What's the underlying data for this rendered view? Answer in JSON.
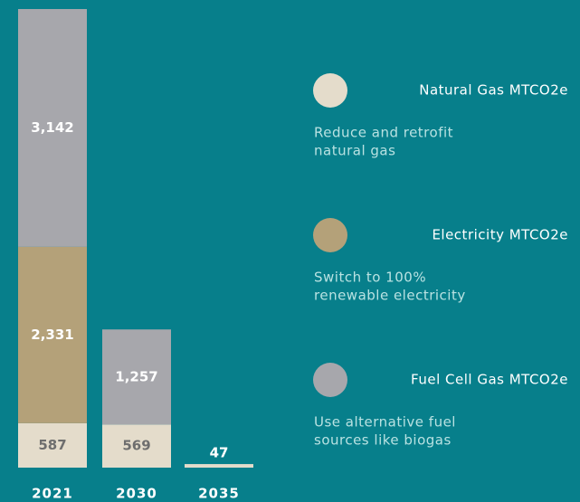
{
  "chart_data": {
    "type": "stacked_bar",
    "categories": [
      "2021",
      "2030",
      "2035"
    ],
    "series": [
      {
        "name": "Natural Gas MTCO2e",
        "color": "#e4dccb",
        "label_color": "#6e6e6e",
        "values": [
          587,
          569,
          47
        ],
        "value_labels": [
          "587",
          "569",
          "47"
        ],
        "description": [
          "Reduce and retrofit",
          "natural gas"
        ]
      },
      {
        "name": "Electricity MTCO2e",
        "color": "#b4a179",
        "label_color": "#ffffff",
        "values": [
          2331,
          null,
          null
        ],
        "value_labels": [
          "2,331",
          null,
          null
        ],
        "description": [
          "Switch to 100%",
          "renewable electricity"
        ]
      },
      {
        "name": "Fuel Cell Gas MTCO2e",
        "color": "#a7a7ac",
        "label_color": "#ffffff",
        "values": [
          3142,
          1257,
          null
        ],
        "value_labels": [
          "3,142",
          "1,257",
          null
        ],
        "description": [
          "Use alternative fuel",
          "sources like biogas"
        ]
      }
    ],
    "background": "#077f8b"
  }
}
